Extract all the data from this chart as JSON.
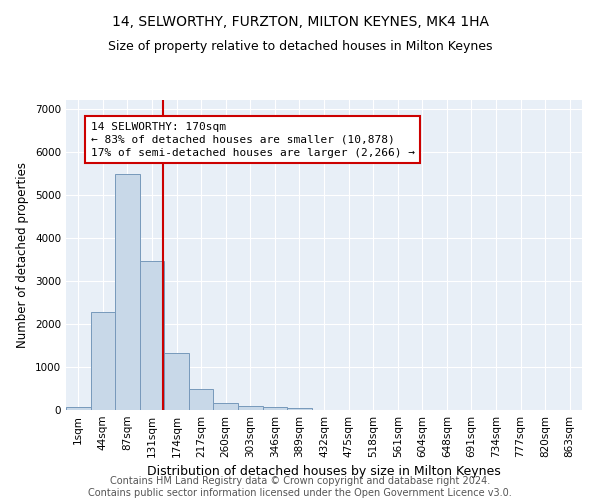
{
  "title": "14, SELWORTHY, FURZTON, MILTON KEYNES, MK4 1HA",
  "subtitle": "Size of property relative to detached houses in Milton Keynes",
  "xlabel": "Distribution of detached houses by size in Milton Keynes",
  "ylabel": "Number of detached properties",
  "footer_line1": "Contains HM Land Registry data © Crown copyright and database right 2024.",
  "footer_line2": "Contains public sector information licensed under the Open Government Licence v3.0.",
  "bar_labels": [
    "1sqm",
    "44sqm",
    "87sqm",
    "131sqm",
    "174sqm",
    "217sqm",
    "260sqm",
    "303sqm",
    "346sqm",
    "389sqm",
    "432sqm",
    "475sqm",
    "518sqm",
    "561sqm",
    "604sqm",
    "648sqm",
    "691sqm",
    "734sqm",
    "777sqm",
    "820sqm",
    "863sqm"
  ],
  "bar_values": [
    70,
    2270,
    5470,
    3450,
    1320,
    480,
    165,
    95,
    65,
    35,
    0,
    0,
    0,
    0,
    0,
    0,
    0,
    0,
    0,
    0,
    0
  ],
  "bar_color": "#c8d8e8",
  "bar_edgecolor": "#7799bb",
  "vline_color": "#cc0000",
  "vline_x": 3.45,
  "annotation_line1": "14 SELWORTHY: 170sqm",
  "annotation_line2": "← 83% of detached houses are smaller (10,878)",
  "annotation_line3": "17% of semi-detached houses are larger (2,266) →",
  "annotation_box_color": "#cc0000",
  "annotation_bg": "#ffffff",
  "ylim_max": 7200,
  "yticks": [
    0,
    1000,
    2000,
    3000,
    4000,
    5000,
    6000,
    7000
  ],
  "axes_bg": "#e8eff7",
  "grid_color": "#ffffff",
  "title_fontsize": 10,
  "subtitle_fontsize": 9,
  "xlabel_fontsize": 9,
  "ylabel_fontsize": 8.5,
  "tick_fontsize": 7.5,
  "footer_fontsize": 7
}
